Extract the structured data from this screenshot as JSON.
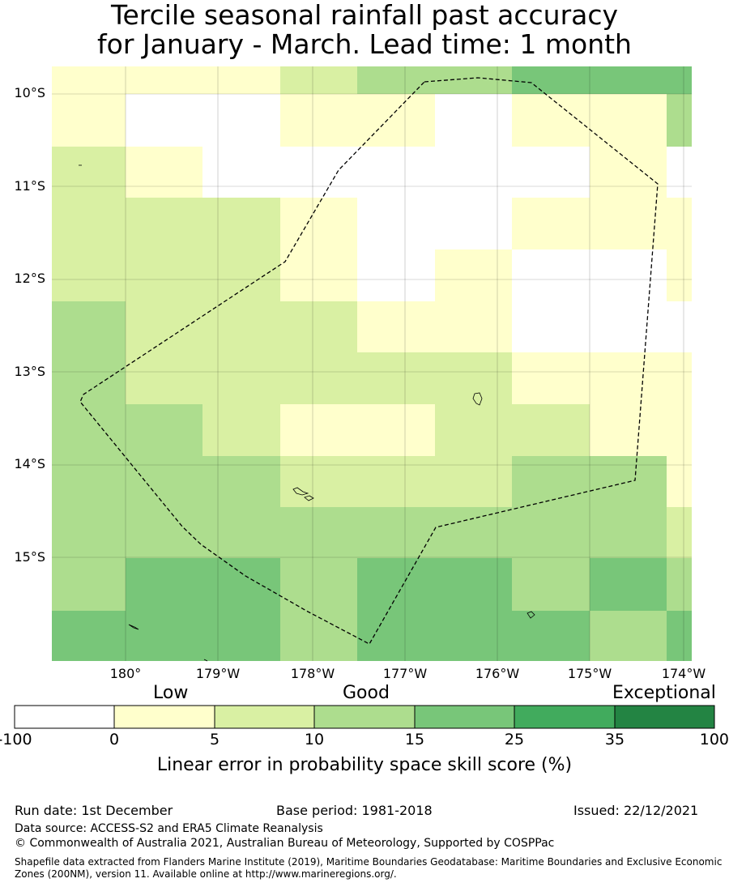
{
  "title": {
    "line1": "Tercile seasonal rainfall past accuracy",
    "line2": "for January - March. Lead time: 1 month"
  },
  "map": {
    "lat_labels": [
      "10°S",
      "11°S",
      "12°S",
      "13°S",
      "14°S",
      "15°S"
    ],
    "lon_labels": [
      "180°",
      "179°W",
      "178°W",
      "177°W",
      "176°W",
      "175°W",
      "174°W"
    ],
    "layers": [
      "LEPS skill score grid",
      "graticule",
      "land outlines",
      "EEZ boundary (dashed)"
    ]
  },
  "colorbar": {
    "category_low": "Low",
    "category_good": "Good",
    "category_exceptional": "Exceptional",
    "ticks": [
      "-100",
      "0",
      "5",
      "10",
      "15",
      "25",
      "35",
      "100"
    ],
    "colors": [
      "#ffffff",
      "#ffffcc",
      "#d9f0a3",
      "#addd8e",
      "#78c679",
      "#41ab5d",
      "#238443"
    ],
    "label": "Linear error in probability space skill score (%)"
  },
  "footer": {
    "run_date": "Run date: 1st December",
    "base_period": "Base period: 1981-2018",
    "issued": "Issued: 22/12/2021",
    "data_source": "Data source: ACCESS-S2 and ERA5 Climate Reanalysis",
    "copyright": "© Commonwealth of Australia 2021, Australian Bureau of Meteorology, Supported by COSPPac",
    "shapefile": "Shapefile data extracted from Flanders Marine Institute (2019), Maritime Boundaries Geodatabase: Maritime Boundaries and Exclusive Economic Zones (200NM), version 11. Available online at http://www.marineregions.org/."
  }
}
